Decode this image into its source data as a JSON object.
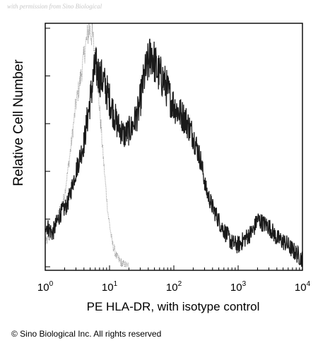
{
  "watermark": "with permission from Sino Biological",
  "copyright": "© Sino Biological Inc. All rights reserved",
  "colors": {
    "isotype": "#9a9a9a",
    "sample": "#1a1a1a",
    "axis": "#000000"
  },
  "chart_data": {
    "type": "line",
    "title": "",
    "xlabel": "PE HLA-DR, with isotype control",
    "ylabel": "Relative Cell Number",
    "xscale": "log",
    "xlim": [
      1,
      10000
    ],
    "ylim": [
      0,
      1
    ],
    "grid": false,
    "x_ticks": [
      {
        "base": "10",
        "exp": "0",
        "value": 1
      },
      {
        "base": "10",
        "exp": "1",
        "value": 10
      },
      {
        "base": "10",
        "exp": "2",
        "value": 100
      },
      {
        "base": "10",
        "exp": "3",
        "value": 1000
      },
      {
        "base": "10",
        "exp": "4",
        "value": 10000
      }
    ],
    "y_ticks": [
      0,
      0.2,
      0.4,
      0.6,
      0.8,
      1.0
    ],
    "series": [
      {
        "key": "isotype",
        "x": [
          1.0,
          1.3,
          1.6,
          2.0,
          2.5,
          3.0,
          3.6,
          4.2,
          4.8,
          5.5,
          6.3,
          7.2,
          8.2,
          9.5,
          11,
          13,
          16,
          20
        ],
        "values": [
          0.1,
          0.14,
          0.22,
          0.3,
          0.5,
          0.68,
          0.8,
          0.92,
          1.0,
          0.96,
          0.82,
          0.62,
          0.42,
          0.22,
          0.1,
          0.04,
          0.01,
          0.0
        ]
      },
      {
        "key": "sample",
        "x": [
          1.0,
          1.3,
          1.7,
          2.2,
          3.0,
          4.0,
          5.0,
          6.0,
          7.0,
          8.0,
          10,
          13,
          17,
          22,
          28,
          35,
          45,
          55,
          70,
          90,
          110,
          150,
          200,
          260,
          320,
          400,
          550,
          800,
          1000,
          1300,
          1700,
          2000,
          2500,
          3000,
          4000,
          5500,
          7000,
          8500,
          10000
        ],
        "values": [
          0.18,
          0.14,
          0.22,
          0.26,
          0.4,
          0.52,
          0.7,
          0.84,
          0.8,
          0.78,
          0.7,
          0.6,
          0.55,
          0.58,
          0.65,
          0.8,
          0.9,
          0.82,
          0.78,
          0.7,
          0.66,
          0.62,
          0.55,
          0.45,
          0.32,
          0.25,
          0.17,
          0.1,
          0.09,
          0.12,
          0.15,
          0.2,
          0.18,
          0.17,
          0.12,
          0.1,
          0.07,
          0.05,
          0.03
        ]
      }
    ]
  }
}
